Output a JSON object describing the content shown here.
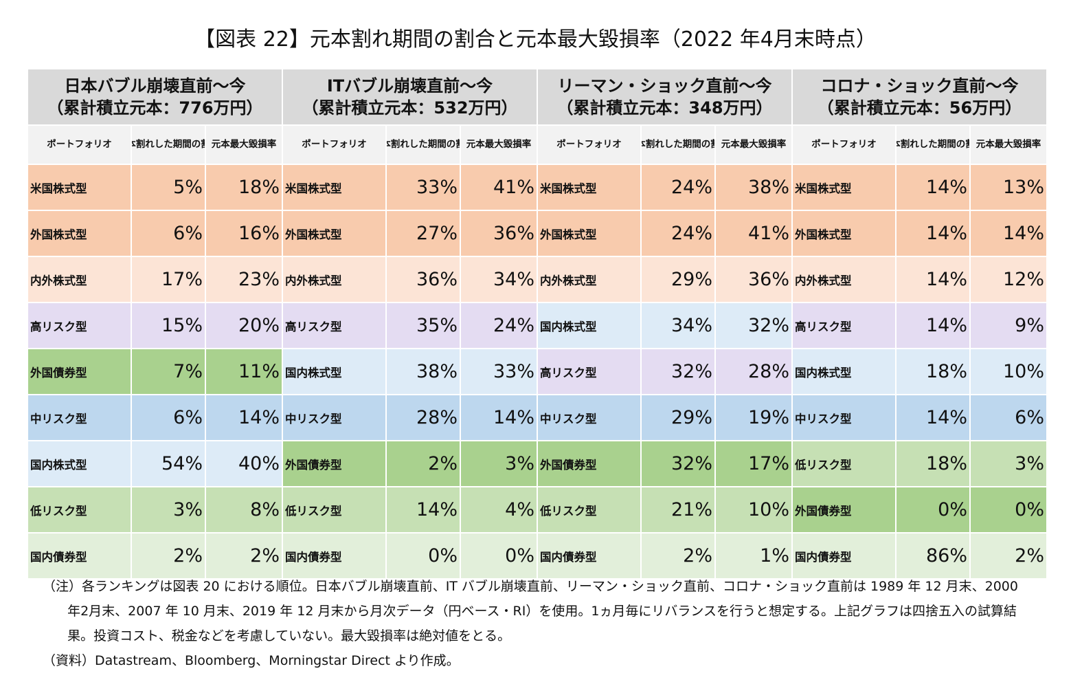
{
  "title": "【図表 22】元本割れ期間の割合と元本最大毀損率（2022 年4月末時点）",
  "colors": {
    "header": "#d9d9d9",
    "subheader": "#f2f2f2",
    "category_colors": {
      "米国株式型": "#f8cbad",
      "外国株式型": "#f8cbad",
      "内外株式型": "#fce4d6",
      "高リスク型": "#e4dcf2",
      "外国債券型": "#a9d18e",
      "中リスク型": "#bdd7ee",
      "国内株式型": "#ddebf7",
      "低リスク型": "#c6e0b4",
      "国内債券型": "#e2efda"
    }
  },
  "chart_data": {
    "type": "table",
    "columns": [
      "ポートフォリオ",
      "元本割れした期間の割合",
      "元本最大毀損率"
    ],
    "panels": [
      {
        "title": "日本バブル崩壊直前～今",
        "subtitle": "（累計積立元本：776万円）",
        "rows": [
          {
            "portfolio": "米国株式型",
            "loss_period": "5%",
            "max_drawdown": "18%"
          },
          {
            "portfolio": "外国株式型",
            "loss_period": "6%",
            "max_drawdown": "16%"
          },
          {
            "portfolio": "内外株式型",
            "loss_period": "17%",
            "max_drawdown": "23%"
          },
          {
            "portfolio": "高リスク型",
            "loss_period": "15%",
            "max_drawdown": "20%"
          },
          {
            "portfolio": "外国債券型",
            "loss_period": "7%",
            "max_drawdown": "11%"
          },
          {
            "portfolio": "中リスク型",
            "loss_period": "6%",
            "max_drawdown": "14%"
          },
          {
            "portfolio": "国内株式型",
            "loss_period": "54%",
            "max_drawdown": "40%"
          },
          {
            "portfolio": "低リスク型",
            "loss_period": "3%",
            "max_drawdown": "8%"
          },
          {
            "portfolio": "国内債券型",
            "loss_period": "2%",
            "max_drawdown": "2%"
          }
        ]
      },
      {
        "title": "ITバブル崩壊直前～今",
        "subtitle": "（累計積立元本：532万円）",
        "rows": [
          {
            "portfolio": "米国株式型",
            "loss_period": "33%",
            "max_drawdown": "41%"
          },
          {
            "portfolio": "外国株式型",
            "loss_period": "27%",
            "max_drawdown": "36%"
          },
          {
            "portfolio": "内外株式型",
            "loss_period": "36%",
            "max_drawdown": "34%"
          },
          {
            "portfolio": "高リスク型",
            "loss_period": "35%",
            "max_drawdown": "24%"
          },
          {
            "portfolio": "国内株式型",
            "loss_period": "38%",
            "max_drawdown": "33%"
          },
          {
            "portfolio": "中リスク型",
            "loss_period": "28%",
            "max_drawdown": "14%"
          },
          {
            "portfolio": "外国債券型",
            "loss_period": "2%",
            "max_drawdown": "3%"
          },
          {
            "portfolio": "低リスク型",
            "loss_period": "14%",
            "max_drawdown": "4%"
          },
          {
            "portfolio": "国内債券型",
            "loss_period": "0%",
            "max_drawdown": "0%"
          }
        ]
      },
      {
        "title": "リーマン・ショック直前～今",
        "subtitle": "（累計積立元本：348万円）",
        "rows": [
          {
            "portfolio": "米国株式型",
            "loss_period": "24%",
            "max_drawdown": "38%"
          },
          {
            "portfolio": "外国株式型",
            "loss_period": "24%",
            "max_drawdown": "41%"
          },
          {
            "portfolio": "内外株式型",
            "loss_period": "29%",
            "max_drawdown": "36%"
          },
          {
            "portfolio": "国内株式型",
            "loss_period": "34%",
            "max_drawdown": "32%"
          },
          {
            "portfolio": "高リスク型",
            "loss_period": "32%",
            "max_drawdown": "28%"
          },
          {
            "portfolio": "中リスク型",
            "loss_period": "29%",
            "max_drawdown": "19%"
          },
          {
            "portfolio": "外国債券型",
            "loss_period": "32%",
            "max_drawdown": "17%"
          },
          {
            "portfolio": "低リスク型",
            "loss_period": "21%",
            "max_drawdown": "10%"
          },
          {
            "portfolio": "国内債券型",
            "loss_period": "2%",
            "max_drawdown": "1%"
          }
        ]
      },
      {
        "title": "コロナ・ショック直前～今",
        "subtitle": "（累計積立元本：56万円）",
        "rows": [
          {
            "portfolio": "米国株式型",
            "loss_period": "14%",
            "max_drawdown": "13%"
          },
          {
            "portfolio": "外国株式型",
            "loss_period": "14%",
            "max_drawdown": "14%"
          },
          {
            "portfolio": "内外株式型",
            "loss_period": "14%",
            "max_drawdown": "12%"
          },
          {
            "portfolio": "高リスク型",
            "loss_period": "14%",
            "max_drawdown": "9%"
          },
          {
            "portfolio": "国内株式型",
            "loss_period": "18%",
            "max_drawdown": "10%"
          },
          {
            "portfolio": "中リスク型",
            "loss_period": "14%",
            "max_drawdown": "6%"
          },
          {
            "portfolio": "低リスク型",
            "loss_period": "18%",
            "max_drawdown": "3%"
          },
          {
            "portfolio": "外国債券型",
            "loss_period": "0%",
            "max_drawdown": "0%"
          },
          {
            "portfolio": "国内債券型",
            "loss_period": "86%",
            "max_drawdown": "2%"
          }
        ]
      }
    ]
  },
  "notes": {
    "note": "（注）各ランキングは図表 20 における順位。日本バブル崩壊直前、IT バブル崩壊直前、リーマン・ショック直前、コロナ・ショック直前は 1989 年 12 月末、2000 年2月末、2007 年 10 月末、2019 年 12 月末から月次データ（円ベース・RI）を使用。1ヵ月毎にリバランスを行うと想定する。上記グラフは四捨五入の試算結果。投資コスト、税金などを考慮していない。最大毀損率は絶対値をとる。",
    "source": "（資料）Datastream、Bloomberg、Morningstar Direct より作成。"
  }
}
